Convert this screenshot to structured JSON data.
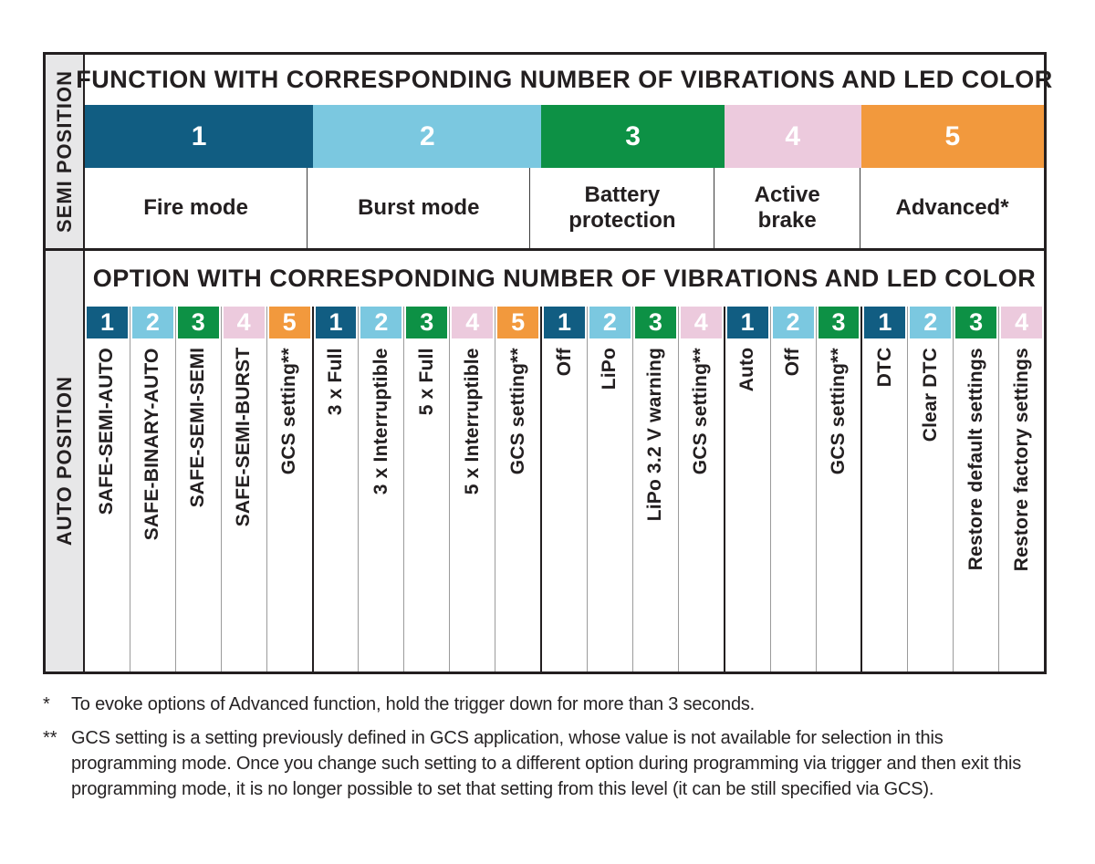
{
  "led_colors": {
    "1": "#115D82",
    "2": "#7BC8E0",
    "3": "#0D9145",
    "4": "#ECCADD",
    "5": "#F2993D"
  },
  "semi_section": {
    "side_label": "SEMI POSITION",
    "title": "FUNCTION WITH CORRESPONDING NUMBER OF VIBRATIONS AND LED COLOR",
    "functions": [
      {
        "number": "1",
        "label": "Fire mode"
      },
      {
        "number": "2",
        "label": "Burst mode"
      },
      {
        "number": "3",
        "label": "Battery protection"
      },
      {
        "number": "4",
        "label": "Active brake"
      },
      {
        "number": "5",
        "label": "Advanced*"
      }
    ]
  },
  "auto_section": {
    "side_label": "AUTO POSITION",
    "title": "OPTION WITH CORRESPONDING NUMBER OF VIBRATIONS AND LED COLOR",
    "groups": [
      {
        "function": "Fire mode",
        "options": [
          {
            "number": "1",
            "label": "SAFE-SEMI-AUTO"
          },
          {
            "number": "2",
            "label": "SAFE-BINARY-AUTO"
          },
          {
            "number": "3",
            "label": "SAFE-SEMI-SEMI"
          },
          {
            "number": "4",
            "label": "SAFE-SEMI-BURST"
          },
          {
            "number": "5",
            "label": "GCS setting**"
          }
        ]
      },
      {
        "function": "Burst mode",
        "options": [
          {
            "number": "1",
            "label": "3 x Full"
          },
          {
            "number": "2",
            "label": "3 x Interruptible"
          },
          {
            "number": "3",
            "label": "5 x Full"
          },
          {
            "number": "4",
            "label": "5 x Interruptible"
          },
          {
            "number": "5",
            "label": "GCS setting**"
          }
        ]
      },
      {
        "function": "Battery protection",
        "options": [
          {
            "number": "1",
            "label": "Off"
          },
          {
            "number": "2",
            "label": "LiPo"
          },
          {
            "number": "3",
            "label": "LiPo 3.2 V warning"
          },
          {
            "number": "4",
            "label": "GCS setting**"
          }
        ]
      },
      {
        "function": "Active brake",
        "options": [
          {
            "number": "1",
            "label": "Auto"
          },
          {
            "number": "2",
            "label": "Off"
          },
          {
            "number": "3",
            "label": "GCS setting**"
          }
        ]
      },
      {
        "function": "Advanced",
        "options": [
          {
            "number": "1",
            "label": "DTC"
          },
          {
            "number": "2",
            "label": "Clear DTC"
          },
          {
            "number": "3",
            "label": "Restore default settings"
          },
          {
            "number": "4",
            "label": "Restore factory settings"
          }
        ]
      }
    ]
  },
  "footnotes": [
    {
      "marker": "*",
      "text": "To evoke options of Advanced function, hold the trigger down for more than 3 seconds."
    },
    {
      "marker": "**",
      "text": "GCS setting is a setting previously defined in GCS application, whose value is not available for selection in this programming mode. Once you change such setting to a different option during programming via trigger and then exit this programming mode, it is no longer possible to set that setting from this level (it can be still specified via GCS)."
    }
  ]
}
